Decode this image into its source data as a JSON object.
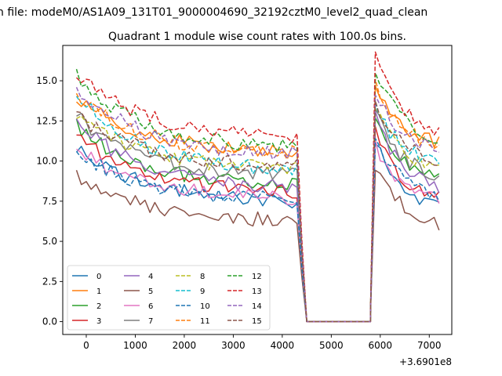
{
  "figure": {
    "suptitle": "n file: modeM0/AS1A09_131T01_9000004690_32192cztM0_level2_quad_clean",
    "x_offset_label": "+3.6901e8"
  },
  "chart_data": {
    "type": "line",
    "title": "Quadrant 1 module wise count rates with 100.0s bins.",
    "xlabel": "",
    "ylabel": "",
    "xlim": [
      -480,
      7460
    ],
    "ylim": [
      -0.8,
      17.2
    ],
    "xticks": [
      0,
      1000,
      2000,
      3000,
      4000,
      5000,
      6000,
      7000
    ],
    "xtick_labels": [
      "0",
      "1000",
      "2000",
      "3000",
      "4000",
      "5000",
      "6000",
      "7000"
    ],
    "yticks": [
      0.0,
      2.5,
      5.0,
      7.5,
      10.0,
      12.5,
      15.0
    ],
    "ytick_labels": [
      "0.0",
      "2.5",
      "5.0",
      "7.5",
      "10.0",
      "12.5",
      "15.0"
    ],
    "grid": false,
    "legend_position": "lower-left",
    "legend_columns": 4,
    "segments": [
      {
        "x_start": -200,
        "x_end": 4300,
        "step": 100
      },
      {
        "x_start": 4400,
        "x_end": 5800,
        "step": 100
      },
      {
        "x_start": 5900,
        "x_end": 7150,
        "step": 100
      }
    ],
    "series": [
      {
        "name": "0",
        "color": "#1f77b4",
        "dash": "solid",
        "start": 11.0,
        "end": 7.4,
        "late_start": 11.4,
        "late_end": 6.7
      },
      {
        "name": "1",
        "color": "#ff7f0e",
        "dash": "solid",
        "start": 14.0,
        "end": 10.5,
        "late_start": 14.5,
        "late_end": 10.7
      },
      {
        "name": "2",
        "color": "#2ca02c",
        "dash": "solid",
        "start": 12.2,
        "end": 8.4,
        "late_start": 12.4,
        "late_end": 8.4
      },
      {
        "name": "3",
        "color": "#d62728",
        "dash": "solid",
        "start": 11.6,
        "end": 8.0,
        "late_start": 11.8,
        "late_end": 7.2
      },
      {
        "name": "4",
        "color": "#9467bd",
        "dash": "solid",
        "start": 12.5,
        "end": 8.2,
        "late_start": 12.8,
        "late_end": 7.9
      },
      {
        "name": "5",
        "color": "#8c564b",
        "dash": "solid",
        "start": 9.2,
        "end": 6.2,
        "late_start": 9.6,
        "late_end": 5.7
      },
      {
        "name": "6",
        "color": "#e377c2",
        "dash": "solid",
        "start": 10.8,
        "end": 7.6,
        "late_start": 11.0,
        "late_end": 7.1
      },
      {
        "name": "7",
        "color": "#7f7f7f",
        "dash": "solid",
        "start": 12.8,
        "end": 9.0,
        "late_start": 13.0,
        "late_end": 8.6
      },
      {
        "name": "8",
        "color": "#bcbd22",
        "dash": "dashed",
        "start": 12.9,
        "end": 9.4,
        "late_start": 13.3,
        "late_end": 9.0
      },
      {
        "name": "9",
        "color": "#17becf",
        "dash": "dashed",
        "start": 14.2,
        "end": 9.3,
        "late_start": 13.4,
        "late_end": 9.4
      },
      {
        "name": "10",
        "color": "#1f77b4",
        "dash": "dashed",
        "start": 10.6,
        "end": 7.5,
        "late_start": 11.4,
        "late_end": 7.3
      },
      {
        "name": "11",
        "color": "#ff7f0e",
        "dash": "dashed",
        "start": 14.1,
        "end": 10.4,
        "late_start": 14.7,
        "late_end": 10.5
      },
      {
        "name": "12",
        "color": "#2ca02c",
        "dash": "dashed",
        "start": 15.3,
        "end": 10.7,
        "late_start": 15.5,
        "late_end": 10.9
      },
      {
        "name": "13",
        "color": "#d62728",
        "dash": "dashed",
        "start": 15.5,
        "end": 11.4,
        "late_start": 16.4,
        "late_end": 11.3
      },
      {
        "name": "14",
        "color": "#9467bd",
        "dash": "dashed",
        "start": 14.6,
        "end": 10.3,
        "late_start": 14.4,
        "late_end": 10.2
      },
      {
        "name": "15",
        "color": "#8c564b",
        "dash": "dashed",
        "start": 12.9,
        "end": 9.6,
        "late_start": 13.6,
        "late_end": 9.5
      }
    ]
  }
}
